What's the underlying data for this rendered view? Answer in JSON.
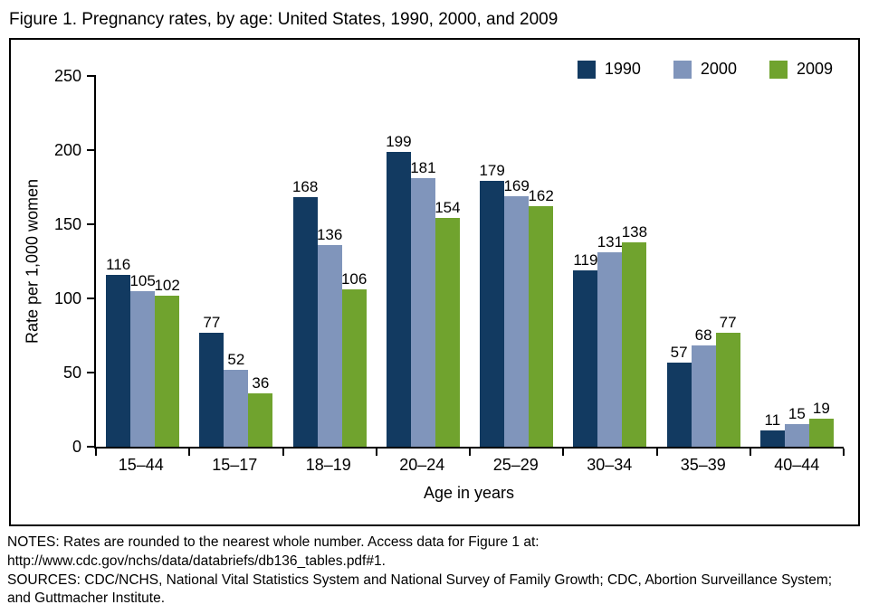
{
  "figure": {
    "title": "Figure 1. Pregnancy rates, by age: United States, 1990, 2000, and 2009",
    "notes": "NOTES: Rates are rounded to the nearest whole number. Access data for Figure 1 at: http://www.cdc.gov/nchs/data/databriefs/db136_tables.pdf#1.",
    "sources": "SOURCES: CDC/NCHS, National Vital Statistics System and National Survey of Family Growth; CDC, Abortion Surveillance System; and Guttmacher Institute."
  },
  "chart_data": {
    "type": "bar",
    "title": "Figure 1. Pregnancy rates, by age: United States, 1990, 2000, and 2009",
    "categories": [
      "15–44",
      "15–17",
      "18–19",
      "20–24",
      "25–29",
      "30–34",
      "35–39",
      "40–44"
    ],
    "series": [
      {
        "name": "1990",
        "color": "#123a61",
        "values": [
          116,
          77,
          168,
          199,
          179,
          119,
          57,
          11
        ]
      },
      {
        "name": "2000",
        "color": "#8095bb",
        "values": [
          105,
          52,
          136,
          181,
          169,
          131,
          68,
          15
        ]
      },
      {
        "name": "2009",
        "color": "#70a32e",
        "values": [
          102,
          36,
          106,
          154,
          162,
          138,
          77,
          19
        ]
      }
    ],
    "xlabel": "Age in years",
    "ylabel": "Rate per 1,000 women",
    "ylim": [
      0,
      250
    ],
    "yticks": [
      0,
      50,
      100,
      150,
      200,
      250
    ],
    "legend_position": "top-right",
    "grid": false,
    "value_labels": true
  }
}
